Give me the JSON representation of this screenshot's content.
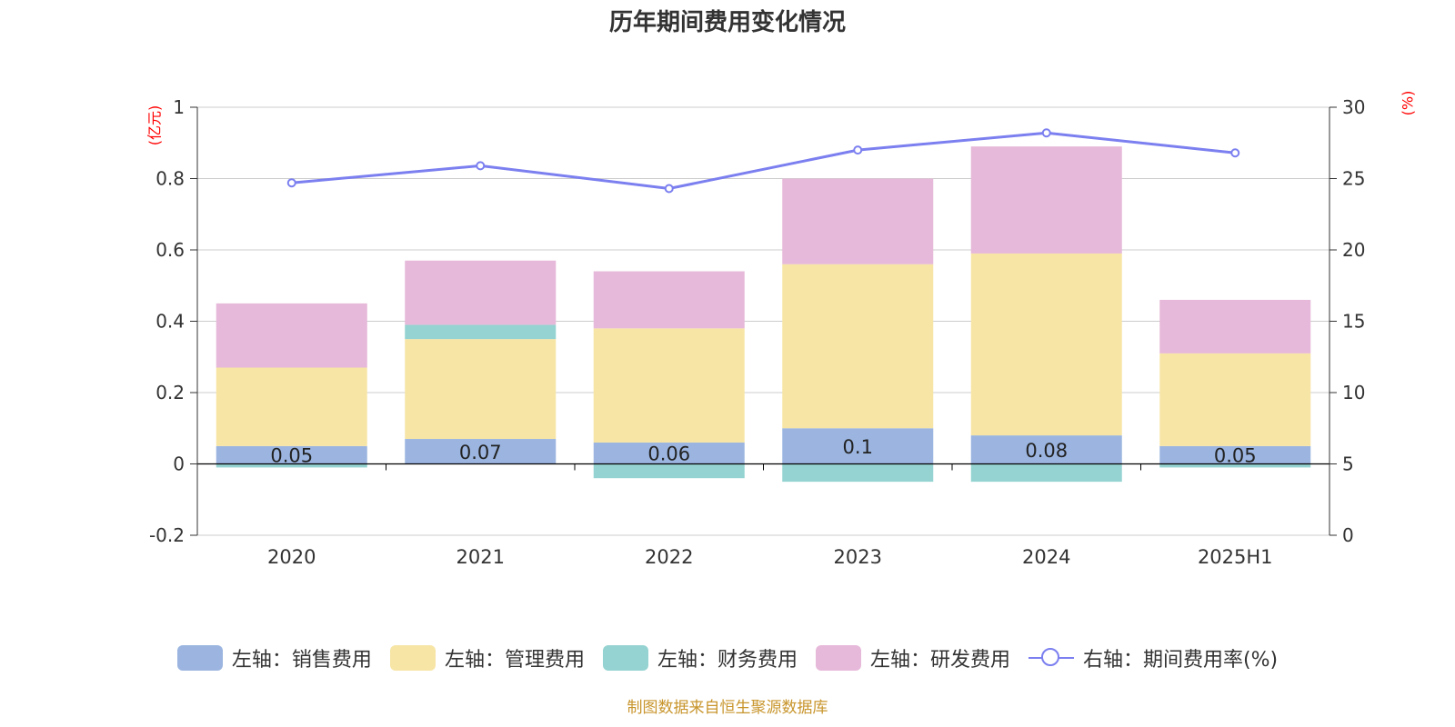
{
  "title": "历年期间费用变化情况",
  "left_unit": "(亿元)",
  "right_unit": "(%)",
  "source": "制图数据来自恒生聚源数据库",
  "colors": {
    "sales": "#9bb5e0",
    "admin": "#f7e5a6",
    "finance": "#94d3d1",
    "rd": "#e6b8d9",
    "rate": "#7b7fef"
  },
  "legend": [
    {
      "label": "左轴：销售费用",
      "color": "#9bb5e0",
      "type": "bar"
    },
    {
      "label": "左轴：管理费用",
      "color": "#f7e5a6",
      "type": "bar"
    },
    {
      "label": "左轴：财务费用",
      "color": "#94d3d1",
      "type": "bar"
    },
    {
      "label": "左轴：研发费用",
      "color": "#e6b8d9",
      "type": "bar"
    },
    {
      "label": "右轴：期间费用率(%)",
      "color": "#7b7fef",
      "type": "line"
    }
  ],
  "chart_data": {
    "type": "bar",
    "stacked": true,
    "categories": [
      "2020",
      "2021",
      "2022",
      "2023",
      "2024",
      "2025H1"
    ],
    "series": [
      {
        "name": "左轴：销售费用",
        "axis": "left",
        "values": [
          0.05,
          0.07,
          0.06,
          0.1,
          0.08,
          0.05
        ],
        "data_labels": [
          "0.05",
          "0.07",
          "0.06",
          "0.1",
          "0.08",
          "0.05"
        ]
      },
      {
        "name": "左轴：管理费用",
        "axis": "left",
        "values": [
          0.22,
          0.28,
          0.32,
          0.46,
          0.51,
          0.26
        ]
      },
      {
        "name": "左轴：财务费用",
        "axis": "left",
        "values": [
          -0.01,
          0.04,
          -0.04,
          -0.05,
          -0.05,
          -0.01
        ]
      },
      {
        "name": "左轴：研发费用",
        "axis": "left",
        "values": [
          0.18,
          0.18,
          0.16,
          0.24,
          0.3,
          0.15
        ]
      },
      {
        "name": "右轴：期间费用率(%)",
        "axis": "right",
        "type": "line",
        "values": [
          24.7,
          25.9,
          24.3,
          27.0,
          28.2,
          26.8
        ]
      }
    ],
    "left_axis": {
      "min": -0.2,
      "max": 1,
      "ticks": [
        "-0.2",
        "0",
        "0.2",
        "0.4",
        "0.6",
        "0.8",
        "1"
      ]
    },
    "right_axis": {
      "min": 0,
      "max": 30,
      "ticks": [
        "0",
        "5",
        "10",
        "15",
        "20",
        "25",
        "30"
      ]
    },
    "grid": true,
    "legend_position": "bottom"
  }
}
